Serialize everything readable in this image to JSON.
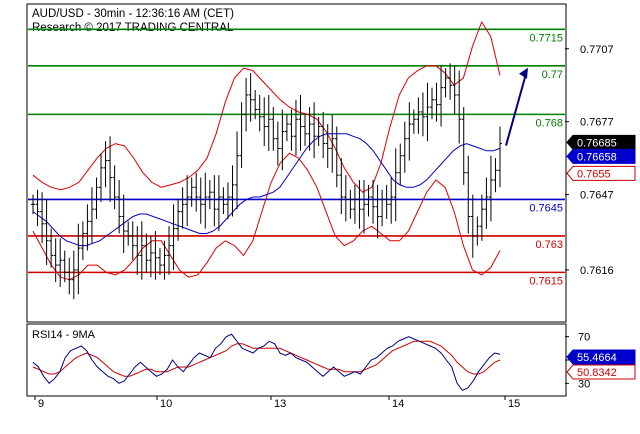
{
  "header": {
    "line1": "AUD/USD - 30min - 12:36:16 AM (CET)",
    "line2": "Research © 2017 TRADING CENTRAL"
  },
  "colors": {
    "resistance": "#008000",
    "support_blue": "#0000cc",
    "support_red": "#cc0000",
    "bollinger": "#dd0000",
    "moving_average": "#0000cc",
    "candles": "#000000",
    "arrow": "#000080",
    "rsi": "#000080",
    "rsi_ma": "#cc0000"
  },
  "chart_data": [
    {
      "type": "candlestick",
      "title": "AUD/USD - 30min",
      "ylim": [
        0.7595,
        0.7725
      ],
      "x_ticks": [
        "9",
        "10",
        "13",
        "14",
        "15"
      ],
      "y_ticks": [
        0.7707,
        0.7677,
        0.7647,
        0.7616
      ],
      "levels": [
        {
          "label": "0.7715",
          "value": 0.7715,
          "kind": "resistance"
        },
        {
          "label": "0.77",
          "value": 0.77,
          "kind": "resistance"
        },
        {
          "label": "0.768",
          "value": 0.768,
          "kind": "resistance"
        },
        {
          "label": "0.7645",
          "value": 0.7645,
          "kind": "pivot"
        },
        {
          "label": "0.763",
          "value": 0.763,
          "kind": "support"
        },
        {
          "label": "0.7615",
          "value": 0.7615,
          "kind": "support"
        }
      ],
      "price_tags": [
        {
          "label": "0.76685",
          "value": 0.76685,
          "style": "current"
        },
        {
          "label": "0.76658",
          "value": 0.76658,
          "style": "ma"
        },
        {
          "label": "0.7655",
          "value": 0.7655,
          "style": "boll"
        }
      ],
      "price_path": [
        0.7643,
        0.764,
        0.7635,
        0.7628,
        0.7622,
        0.7618,
        0.762,
        0.7615,
        0.7612,
        0.7616,
        0.7625,
        0.7631,
        0.7636,
        0.7641,
        0.765,
        0.7658,
        0.7661,
        0.7654,
        0.7646,
        0.7638,
        0.7632,
        0.763,
        0.7626,
        0.7622,
        0.7626,
        0.762,
        0.7623,
        0.7621,
        0.7618,
        0.7622,
        0.7626,
        0.7633,
        0.764,
        0.7643,
        0.7646,
        0.765,
        0.7646,
        0.7643,
        0.7646,
        0.7648,
        0.7641,
        0.7646,
        0.7643,
        0.7646,
        0.7651,
        0.7663,
        0.768,
        0.7688,
        0.7686,
        0.7682,
        0.7679,
        0.7675,
        0.7678,
        0.767,
        0.7666,
        0.7673,
        0.7676,
        0.7671,
        0.7678,
        0.7675,
        0.7672,
        0.7676,
        0.7671,
        0.7675,
        0.7668,
        0.7666,
        0.767,
        0.7655,
        0.7646,
        0.7645,
        0.7641,
        0.7645,
        0.7641,
        0.7643,
        0.7646,
        0.7642,
        0.7638,
        0.7645,
        0.7643,
        0.7646,
        0.7656,
        0.7663,
        0.767,
        0.7676,
        0.7678,
        0.7681,
        0.7679,
        0.7683,
        0.7686,
        0.7684,
        0.7691,
        0.7695,
        0.7692,
        0.7688,
        0.7678,
        0.7656,
        0.7638,
        0.763,
        0.7634,
        0.7641,
        0.7646,
        0.7653,
        0.7657,
        0.7668
      ],
      "moving_average_path": [
        0.764,
        0.7638,
        0.7636,
        0.7633,
        0.763,
        0.7628,
        0.7627,
        0.7626,
        0.7626,
        0.7627,
        0.7628,
        0.763,
        0.7632,
        0.7634,
        0.7636,
        0.7638,
        0.7639,
        0.7639,
        0.7638,
        0.7637,
        0.7636,
        0.7635,
        0.7634,
        0.7633,
        0.7632,
        0.7631,
        0.7631,
        0.7632,
        0.7634,
        0.7637,
        0.764,
        0.7643,
        0.7645,
        0.7646,
        0.7646,
        0.7647,
        0.7648,
        0.765,
        0.7654,
        0.7658,
        0.7662,
        0.7666,
        0.7669,
        0.7671,
        0.7672,
        0.7672,
        0.7672,
        0.7672,
        0.7671,
        0.767,
        0.7668,
        0.7665,
        0.7661,
        0.7657,
        0.7653,
        0.7651,
        0.765,
        0.765,
        0.7651,
        0.7653,
        0.7656,
        0.7659,
        0.7662,
        0.7665,
        0.7667,
        0.7668,
        0.7667,
        0.7666,
        0.7665,
        0.7665,
        0.7666
      ],
      "upper_band_path": [
        0.7655,
        0.7652,
        0.765,
        0.7649,
        0.765,
        0.7652,
        0.7657,
        0.7662,
        0.7666,
        0.7668,
        0.7667,
        0.7662,
        0.7656,
        0.7652,
        0.765,
        0.7651,
        0.7652,
        0.7654,
        0.7657,
        0.7662,
        0.7672,
        0.7685,
        0.7695,
        0.7699,
        0.7698,
        0.7694,
        0.769,
        0.7686,
        0.7683,
        0.7681,
        0.768,
        0.7678,
        0.7673,
        0.7666,
        0.7658,
        0.7652,
        0.7648,
        0.765,
        0.766,
        0.7675,
        0.7688,
        0.7695,
        0.7698,
        0.77,
        0.77,
        0.7697,
        0.7692,
        0.7695,
        0.7708,
        0.7718,
        0.7712,
        0.7696
      ],
      "lower_band_path": [
        0.7632,
        0.7625,
        0.7618,
        0.7613,
        0.7612,
        0.7614,
        0.7618,
        0.7618,
        0.7615,
        0.7614,
        0.7616,
        0.762,
        0.7625,
        0.7628,
        0.7628,
        0.7622,
        0.7616,
        0.7613,
        0.7614,
        0.7619,
        0.7625,
        0.7628,
        0.7626,
        0.7622,
        0.7628,
        0.764,
        0.7652,
        0.766,
        0.7664,
        0.7662,
        0.7657,
        0.765,
        0.764,
        0.763,
        0.7626,
        0.7628,
        0.7632,
        0.7634,
        0.7631,
        0.7628,
        0.7628,
        0.7632,
        0.764,
        0.7648,
        0.7653,
        0.765,
        0.764,
        0.7626,
        0.7616,
        0.7614,
        0.7617,
        0.7624
      ],
      "projection": {
        "from": 0.7668,
        "to": 0.77
      }
    },
    {
      "type": "line",
      "title": "RSI14 - 9MA",
      "ylim": [
        20,
        80
      ],
      "y_ticks": [
        70,
        50,
        30
      ],
      "series": [
        {
          "name": "RSI14",
          "values": [
            48,
            44,
            36,
            30,
            34,
            40,
            52,
            58,
            60,
            62,
            58,
            50,
            44,
            40,
            36,
            34,
            30,
            32,
            38,
            44,
            48,
            44,
            40,
            36,
            38,
            42,
            50,
            44,
            40,
            46,
            52,
            56,
            54,
            52,
            60,
            64,
            70,
            72,
            66,
            60,
            58,
            56,
            60,
            62,
            66,
            64,
            56,
            54,
            56,
            52,
            50,
            48,
            44,
            40,
            36,
            40,
            44,
            40,
            36,
            38,
            40,
            38,
            44,
            50,
            52,
            56,
            60,
            62,
            66,
            68,
            70,
            68,
            66,
            64,
            62,
            60,
            56,
            50,
            44,
            30,
            24,
            26,
            32,
            40,
            46,
            52,
            56,
            55
          ]
        },
        {
          "name": "9MA",
          "values": [
            44,
            42,
            40,
            38,
            38,
            40,
            44,
            48,
            52,
            54,
            56,
            54,
            52,
            48,
            44,
            40,
            38,
            36,
            36,
            38,
            40,
            42,
            42,
            40,
            40,
            40,
            42,
            44,
            44,
            44,
            46,
            48,
            50,
            52,
            54,
            56,
            58,
            62,
            64,
            64,
            62,
            60,
            60,
            60,
            60,
            60,
            60,
            58,
            56,
            54,
            52,
            50,
            48,
            46,
            44,
            42,
            42,
            42,
            40,
            40,
            40,
            40,
            42,
            44,
            46,
            50,
            54,
            58,
            60,
            62,
            64,
            66,
            66,
            66,
            66,
            64,
            62,
            58,
            54,
            48,
            44,
            40,
            38,
            38,
            40,
            44,
            48,
            50
          ]
        }
      ],
      "value_tags": [
        {
          "label": "55.4664",
          "value": 55.4664,
          "style": "rsi"
        },
        {
          "label": "50.8342",
          "value": 50.8342,
          "style": "ma"
        }
      ]
    }
  ]
}
